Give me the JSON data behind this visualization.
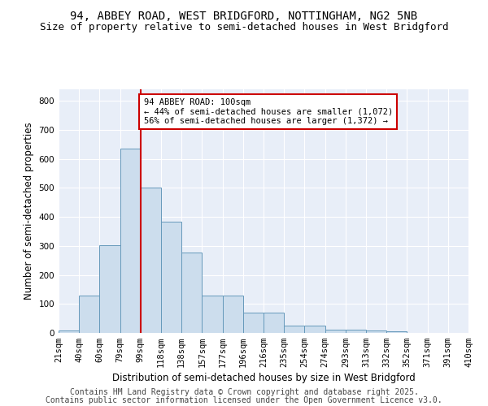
{
  "title_line1": "94, ABBEY ROAD, WEST BRIDGFORD, NOTTINGHAM, NG2 5NB",
  "title_line2": "Size of property relative to semi-detached houses in West Bridgford",
  "xlabel": "Distribution of semi-detached houses by size in West Bridgford",
  "ylabel": "Number of semi-detached properties",
  "footer_line1": "Contains HM Land Registry data © Crown copyright and database right 2025.",
  "footer_line2": "Contains public sector information licensed under the Open Government Licence v3.0.",
  "bins": [
    "21sqm",
    "40sqm",
    "60sqm",
    "79sqm",
    "99sqm",
    "118sqm",
    "138sqm",
    "157sqm",
    "177sqm",
    "196sqm",
    "216sqm",
    "235sqm",
    "254sqm",
    "274sqm",
    "293sqm",
    "313sqm",
    "332sqm",
    "352sqm",
    "371sqm",
    "391sqm",
    "410sqm"
  ],
  "bar_values": [
    8,
    128,
    302,
    635,
    500,
    383,
    278,
    130,
    130,
    70,
    70,
    25,
    25,
    10,
    10,
    8,
    5,
    0,
    0,
    0
  ],
  "bar_color": "#ccdded",
  "bar_edge_color": "#6699bb",
  "annotation_text": "94 ABBEY ROAD: 100sqm\n← 44% of semi-detached houses are smaller (1,072)\n56% of semi-detached houses are larger (1,372) →",
  "vline_x_index": 4,
  "vline_color": "#cc0000",
  "annotation_box_edge_color": "#cc0000",
  "ylim": [
    0,
    840
  ],
  "yticks": [
    0,
    100,
    200,
    300,
    400,
    500,
    600,
    700,
    800
  ],
  "background_color": "#e8eef8",
  "grid_color": "#ffffff",
  "title_fontsize": 10,
  "subtitle_fontsize": 9,
  "axis_label_fontsize": 8.5,
  "tick_fontsize": 7.5,
  "footer_fontsize": 7
}
